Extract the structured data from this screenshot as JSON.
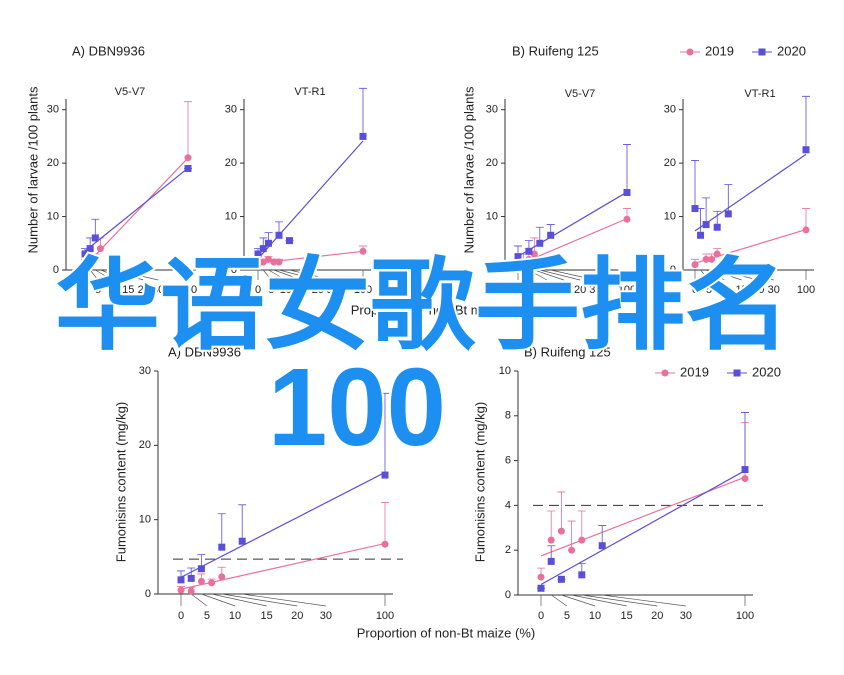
{
  "overlay": {
    "title": "华语女歌手排名",
    "number": "100"
  },
  "chart_data": [
    {
      "type": "scatter",
      "title": "A) DBN9936",
      "ylabel": "Number of larvae /100 plants",
      "xlabel": "Proportion of non-Bt maize (%)",
      "ylim": [
        0,
        32
      ],
      "yticks": [
        0,
        10,
        20,
        30
      ],
      "xlim": [
        0,
        100
      ],
      "xticks": [
        0,
        5,
        10,
        15,
        20,
        30,
        100
      ],
      "panels": [
        {
          "subtitle": "V5-V7",
          "series": [
            {
              "color": "#e8709a",
              "marker": "circle",
              "x": [
                0,
                5,
                10,
                15,
                100
              ],
              "values": [
                1,
                2,
                2,
                4,
                21
              ],
              "errors": [
                1,
                1,
                1,
                2,
                10.5
              ]
            },
            {
              "color": "#5a4fd8",
              "marker": "square",
              "x": [
                0,
                5,
                10,
                100
              ],
              "values": [
                3,
                4,
                6,
                19
              ],
              "errors": [
                1,
                2,
                3.5,
                0
              ]
            }
          ]
        },
        {
          "subtitle": "VT-R1",
          "series": [
            {
              "color": "#e8709a",
              "marker": "circle",
              "x": [
                0,
                5,
                10,
                15,
                20,
                100
              ],
              "values": [
                1,
                1.5,
                2,
                1.5,
                1.5,
                3.5
              ],
              "errors": [
                0.5,
                0.5,
                0.5,
                0.5,
                0.5,
                1
              ]
            },
            {
              "color": "#5a4fd8",
              "marker": "square",
              "x": [
                0,
                5,
                10,
                20,
                30,
                100
              ],
              "values": [
                3,
                4,
                5,
                6.5,
                5.5,
                25
              ],
              "errors": [
                1,
                2,
                2,
                2.5,
                0,
                9
              ]
            }
          ]
        }
      ]
    },
    {
      "type": "scatter",
      "title": "B) Ruifeng 125",
      "ylabel": "Number of larvae /100 plants",
      "legend": "upper right",
      "ylim": [
        0,
        32
      ],
      "yticks": [
        0,
        10,
        20,
        30
      ],
      "xlim": [
        0,
        100
      ],
      "xticks": [
        0,
        5,
        10,
        15,
        20,
        30,
        100
      ],
      "legend_names": [
        "2019",
        "2020"
      ],
      "panels": [
        {
          "subtitle": "V5-V7",
          "series": [
            {
              "color": "#e8709a",
              "marker": "circle",
              "x": [
                0,
                5,
                10,
                15,
                100
              ],
              "values": [
                0.5,
                1,
                2,
                3,
                9.5
              ],
              "errors": [
                1,
                2,
                2,
                3,
                2
              ]
            },
            {
              "color": "#5a4fd8",
              "marker": "square",
              "x": [
                0,
                10,
                20,
                30,
                100
              ],
              "values": [
                2.5,
                3.5,
                5,
                6.5,
                14.5
              ],
              "errors": [
                2,
                2,
                3,
                2,
                9
              ]
            }
          ]
        },
        {
          "subtitle": "VT-R1",
          "series": [
            {
              "color": "#e8709a",
              "marker": "circle",
              "x": [
                0,
                10,
                15,
                20,
                100
              ],
              "values": [
                1,
                2,
                2,
                3,
                7.5
              ],
              "errors": [
                1,
                1,
                1,
                1,
                4
              ]
            },
            {
              "color": "#5a4fd8",
              "marker": "square",
              "x": [
                0,
                5,
                10,
                20,
                30,
                100
              ],
              "values": [
                11.5,
                6.5,
                8.5,
                8,
                10.5,
                22.5
              ],
              "errors": [
                9,
                5,
                5,
                3,
                5.5,
                10
              ]
            }
          ]
        }
      ]
    },
    {
      "type": "scatter",
      "title": "A) DBN9936",
      "ylabel": "Fumonisins content (mg/kg)",
      "xlabel": "Proportion of non-Bt maize (%)",
      "ylim": [
        0,
        30
      ],
      "yticks": [
        0,
        10,
        20,
        30
      ],
      "xlim": [
        0,
        100
      ],
      "xticks": [
        0,
        5,
        10,
        15,
        20,
        30,
        100
      ],
      "hline": 4.7,
      "panels": [
        {
          "series": [
            {
              "color": "#e8709a",
              "marker": "circle",
              "x": [
                0,
                5,
                10,
                15,
                20,
                100
              ],
              "values": [
                0.5,
                0.4,
                1.7,
                1.5,
                2.3,
                6.7
              ],
              "errors": [
                0.5,
                0.5,
                1,
                0.5,
                1.3,
                5.6
              ]
            },
            {
              "color": "#5a4fd8",
              "marker": "square",
              "x": [
                0,
                5,
                10,
                20,
                30,
                100
              ],
              "values": [
                1.9,
                2.1,
                3.4,
                6.3,
                7.1,
                16
              ],
              "errors": [
                1.2,
                1.4,
                1.9,
                4.5,
                4.9,
                11
              ]
            }
          ]
        }
      ]
    },
    {
      "type": "scatter",
      "title": "B) Ruifeng 125",
      "ylabel": "Fumonisins content (mg/kg)",
      "legend": "upper right",
      "ylim": [
        0,
        10
      ],
      "yticks": [
        0,
        2,
        4,
        6,
        8,
        10
      ],
      "xlim": [
        0,
        100
      ],
      "xticks": [
        0,
        5,
        10,
        15,
        20,
        30,
        100
      ],
      "hline": 4,
      "legend_names": [
        "2019",
        "2020"
      ],
      "panels": [
        {
          "series": [
            {
              "color": "#e8709a",
              "marker": "circle",
              "x": [
                0,
                5,
                10,
                15,
                20,
                100
              ],
              "values": [
                0.8,
                2.45,
                2.85,
                2.0,
                2.45,
                5.2
              ],
              "errors": [
                0.4,
                1.3,
                1.75,
                1.3,
                1.3,
                2.5
              ]
            },
            {
              "color": "#5a4fd8",
              "marker": "square",
              "x": [
                0,
                5,
                10,
                20,
                30,
                100
              ],
              "values": [
                0.3,
                1.5,
                0.7,
                0.9,
                2.2,
                5.6
              ],
              "errors": [
                0,
                0.7,
                0,
                0.5,
                0.9,
                2.55
              ]
            }
          ]
        }
      ]
    }
  ]
}
